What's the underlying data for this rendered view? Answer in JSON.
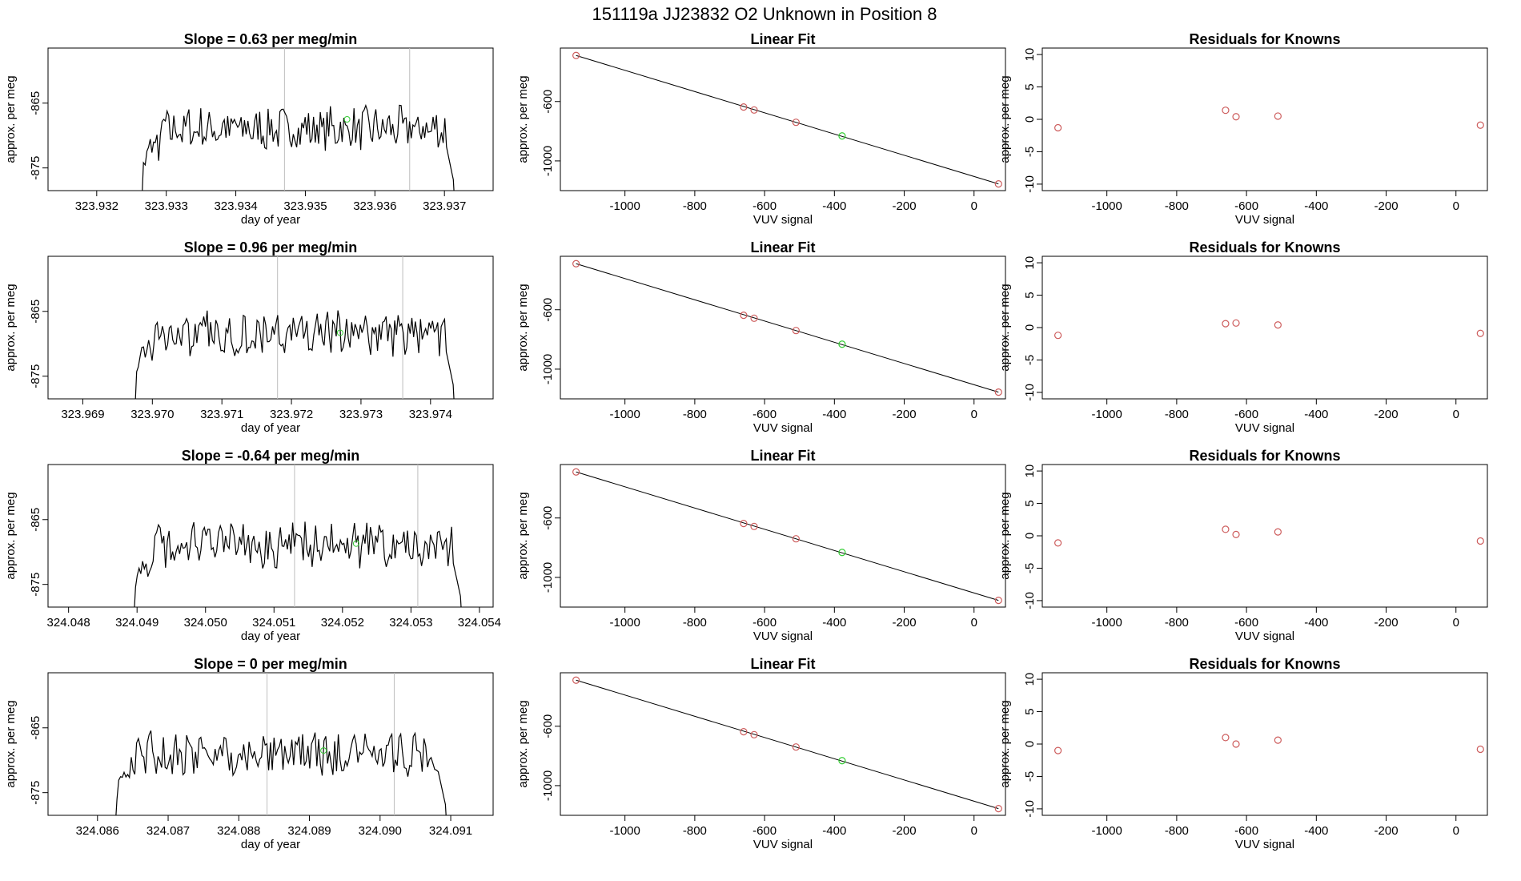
{
  "suptitle": "151119a      JJ23832    O2 Unknown in Position  8",
  "colors": {
    "line": "#000000",
    "vline": "#bebebe",
    "known_point": "#cd5c5c",
    "unknown_point": "#32cd32"
  },
  "chart_data": [
    {
      "type": "line",
      "title": "Slope =  0.63  per meg/min",
      "xlabel": "day of year",
      "ylabel": "approx. per meg",
      "xlim": [
        323.9313,
        323.9377
      ],
      "ylim": [
        -878.5,
        -856.5
      ],
      "xticks": [
        323.932,
        323.933,
        323.934,
        323.935,
        323.936,
        323.937
      ],
      "xtick_labels": [
        "323.932",
        "323.933",
        "323.934",
        "323.935",
        "323.936",
        "323.937"
      ],
      "yticks": [
        -865,
        -875
      ],
      "ytick_labels": [
        "-865",
        "-875"
      ],
      "vlines": [
        323.9347,
        323.9365
      ],
      "x_start": 323.9326,
      "x_end": 323.9372,
      "y_level": -869,
      "highlight": {
        "x": 323.9356,
        "y": -867.5
      }
    },
    {
      "type": "line",
      "title": "Slope =  0.96  per meg/min",
      "xlabel": "day of year",
      "ylabel": "approx. per meg",
      "xlim": [
        323.9685,
        323.9749
      ],
      "ylim": [
        -878.5,
        -856.5
      ],
      "xticks": [
        323.969,
        323.97,
        323.971,
        323.972,
        323.973,
        323.974
      ],
      "xtick_labels": [
        "323.969",
        "323.970",
        "323.971",
        "323.972",
        "323.973",
        "323.974"
      ],
      "yticks": [
        -865,
        -875
      ],
      "ytick_labels": [
        "-865",
        "-875"
      ],
      "vlines": [
        323.9718,
        323.9736
      ],
      "x_start": 323.9697,
      "x_end": 323.9744,
      "y_level": -868.5,
      "highlight": {
        "x": 323.9727,
        "y": -868.3
      }
    },
    {
      "type": "line",
      "title": "Slope =  -0.64  per meg/min",
      "xlabel": "day of year",
      "ylabel": "approx. per meg",
      "xlim": [
        324.0477,
        324.0542
      ],
      "ylim": [
        -878.5,
        -856.5
      ],
      "xticks": [
        324.048,
        324.049,
        324.05,
        324.051,
        324.052,
        324.053,
        324.054
      ],
      "xtick_labels": [
        "324.048",
        "324.049",
        "324.050",
        "324.051",
        "324.052",
        "324.053",
        "324.054"
      ],
      "yticks": [
        -865,
        -875
      ],
      "ytick_labels": [
        "-865",
        "-875"
      ],
      "vlines": [
        324.0513,
        324.0531
      ],
      "x_start": 324.0489,
      "x_end": 324.0538,
      "y_level": -869,
      "highlight": {
        "x": 324.0522,
        "y": -868.7
      }
    },
    {
      "type": "line",
      "title": "Slope =  0  per meg/min",
      "xlabel": "day of year",
      "ylabel": "approx. per meg",
      "xlim": [
        324.0853,
        324.0916
      ],
      "ylim": [
        -878.5,
        -856.5
      ],
      "xticks": [
        324.086,
        324.087,
        324.088,
        324.089,
        324.09,
        324.091
      ],
      "xtick_labels": [
        "324.086",
        "324.087",
        "324.088",
        "324.089",
        "324.090",
        "324.091"
      ],
      "yticks": [
        -865,
        -875
      ],
      "ytick_labels": [
        "-865",
        "-875"
      ],
      "vlines": [
        324.0884,
        324.0902
      ],
      "x_start": 324.0862,
      "x_end": 324.091,
      "y_level": -869,
      "highlight": {
        "x": 324.0892,
        "y": -868.5
      }
    },
    {
      "type": "scatter",
      "title": "Linear Fit",
      "xlabel": "VUV signal",
      "ylabel": "approx. per meg",
      "xlim": [
        -1185,
        90
      ],
      "ylim": [
        -1200,
        -240
      ],
      "xticks": [
        -1000,
        -800,
        -600,
        -400,
        -200,
        0
      ],
      "xtick_labels": [
        "-1000",
        "-800",
        "-600",
        "-400",
        "-200",
        "0"
      ],
      "yticks": [
        -600,
        -1000
      ],
      "ytick_labels": [
        "-600",
        "-1000"
      ],
      "fit_line": {
        "x": [
          -1140,
          70
        ],
        "y": [
          -290,
          -1155
        ]
      },
      "known_points": {
        "x": [
          -1140,
          -660,
          -630,
          -510,
          70
        ],
        "y": [
          -290,
          -637,
          -657,
          -740,
          -1155
        ]
      },
      "unknown_points": {
        "x": [
          -378
        ],
        "y": [
          -832
        ]
      }
    },
    {
      "type": "scatter",
      "title": "Linear Fit",
      "xlabel": "VUV signal",
      "ylabel": "approx. per meg",
      "xlim": [
        -1185,
        90
      ],
      "ylim": [
        -1200,
        -240
      ],
      "xticks": [
        -1000,
        -800,
        -600,
        -400,
        -200,
        0
      ],
      "xtick_labels": [
        "-1000",
        "-800",
        "-600",
        "-400",
        "-200",
        "0"
      ],
      "yticks": [
        -600,
        -1000
      ],
      "ytick_labels": [
        "-600",
        "-1000"
      ],
      "fit_line": {
        "x": [
          -1140,
          70
        ],
        "y": [
          -290,
          -1155
        ]
      },
      "known_points": {
        "x": [
          -1140,
          -660,
          -630,
          -510,
          70
        ],
        "y": [
          -290,
          -637,
          -657,
          -740,
          -1155
        ]
      },
      "unknown_points": {
        "x": [
          -378
        ],
        "y": [
          -832
        ]
      }
    },
    {
      "type": "scatter",
      "title": "Linear Fit",
      "xlabel": "VUV signal",
      "ylabel": "approx. per meg",
      "xlim": [
        -1185,
        90
      ],
      "ylim": [
        -1200,
        -240
      ],
      "xticks": [
        -1000,
        -800,
        -600,
        -400,
        -200,
        0
      ],
      "xtick_labels": [
        "-1000",
        "-800",
        "-600",
        "-400",
        "-200",
        "0"
      ],
      "yticks": [
        -600,
        -1000
      ],
      "ytick_labels": [
        "-600",
        "-1000"
      ],
      "fit_line": {
        "x": [
          -1140,
          70
        ],
        "y": [
          -290,
          -1155
        ]
      },
      "known_points": {
        "x": [
          -1140,
          -660,
          -630,
          -510,
          70
        ],
        "y": [
          -290,
          -637,
          -657,
          -740,
          -1155
        ]
      },
      "unknown_points": {
        "x": [
          -378
        ],
        "y": [
          -832
        ]
      }
    },
    {
      "type": "scatter",
      "title": "Linear Fit",
      "xlabel": "VUV signal",
      "ylabel": "approx. per meg",
      "xlim": [
        -1185,
        90
      ],
      "ylim": [
        -1200,
        -240
      ],
      "xticks": [
        -1000,
        -800,
        -600,
        -400,
        -200,
        0
      ],
      "xtick_labels": [
        "-1000",
        "-800",
        "-600",
        "-400",
        "-200",
        "0"
      ],
      "yticks": [
        -600,
        -1000
      ],
      "ytick_labels": [
        "-600",
        "-1000"
      ],
      "fit_line": {
        "x": [
          -1140,
          70
        ],
        "y": [
          -290,
          -1155
        ]
      },
      "known_points": {
        "x": [
          -1140,
          -660,
          -630,
          -510,
          70
        ],
        "y": [
          -290,
          -637,
          -657,
          -740,
          -1155
        ]
      },
      "unknown_points": {
        "x": [
          -378
        ],
        "y": [
          -832
        ]
      }
    },
    {
      "type": "scatter",
      "title": "Residuals for Knowns",
      "xlabel": "VUV signal",
      "ylabel": "approx. per meg",
      "xlim": [
        -1185,
        90
      ],
      "ylim": [
        -11,
        11
      ],
      "xticks": [
        -1000,
        -800,
        -600,
        -400,
        -200,
        0
      ],
      "xtick_labels": [
        "-1000",
        "-800",
        "-600",
        "-400",
        "-200",
        "0"
      ],
      "yticks": [
        10,
        5,
        0,
        -5,
        -10
      ],
      "ytick_labels": [
        "10",
        "5",
        "0",
        "-5",
        "-10"
      ],
      "known_points": {
        "x": [
          -1140,
          -660,
          -630,
          -510,
          70
        ],
        "y": [
          -1.3,
          1.4,
          0.4,
          0.5,
          -0.9
        ]
      }
    },
    {
      "type": "scatter",
      "title": "Residuals for Knowns",
      "xlabel": "VUV signal",
      "ylabel": "approx. per meg",
      "xlim": [
        -1185,
        90
      ],
      "ylim": [
        -11,
        11
      ],
      "xticks": [
        -1000,
        -800,
        -600,
        -400,
        -200,
        0
      ],
      "xtick_labels": [
        "-1000",
        "-800",
        "-600",
        "-400",
        "-200",
        "0"
      ],
      "yticks": [
        10,
        5,
        0,
        -5,
        -10
      ],
      "ytick_labels": [
        "10",
        "5",
        "0",
        "-5",
        "-10"
      ],
      "known_points": {
        "x": [
          -1140,
          -660,
          -630,
          -510,
          70
        ],
        "y": [
          -1.2,
          0.6,
          0.7,
          0.4,
          -0.9
        ]
      }
    },
    {
      "type": "scatter",
      "title": "Residuals for Knowns",
      "xlabel": "VUV signal",
      "ylabel": "approx. per meg",
      "xlim": [
        -1185,
        90
      ],
      "ylim": [
        -11,
        11
      ],
      "xticks": [
        -1000,
        -800,
        -600,
        -400,
        -200,
        0
      ],
      "xtick_labels": [
        "-1000",
        "-800",
        "-600",
        "-400",
        "-200",
        "0"
      ],
      "yticks": [
        10,
        5,
        0,
        -5,
        -10
      ],
      "ytick_labels": [
        "10",
        "5",
        "0",
        "-5",
        "-10"
      ],
      "known_points": {
        "x": [
          -1140,
          -660,
          -630,
          -510,
          70
        ],
        "y": [
          -1.1,
          1.0,
          0.2,
          0.6,
          -0.8
        ]
      }
    },
    {
      "type": "scatter",
      "title": "Residuals for Knowns",
      "xlabel": "VUV signal",
      "ylabel": "approx. per meg",
      "xlim": [
        -1185,
        90
      ],
      "ylim": [
        -11,
        11
      ],
      "xticks": [
        -1000,
        -800,
        -600,
        -400,
        -200,
        0
      ],
      "xtick_labels": [
        "-1000",
        "-800",
        "-600",
        "-400",
        "-200",
        "0"
      ],
      "yticks": [
        10,
        5,
        0,
        -5,
        -10
      ],
      "ytick_labels": [
        "10",
        "5",
        "0",
        "-5",
        "-10"
      ],
      "known_points": {
        "x": [
          -1140,
          -660,
          -630,
          -510,
          70
        ],
        "y": [
          -1.0,
          1.0,
          0.0,
          0.6,
          -0.8
        ]
      }
    }
  ]
}
